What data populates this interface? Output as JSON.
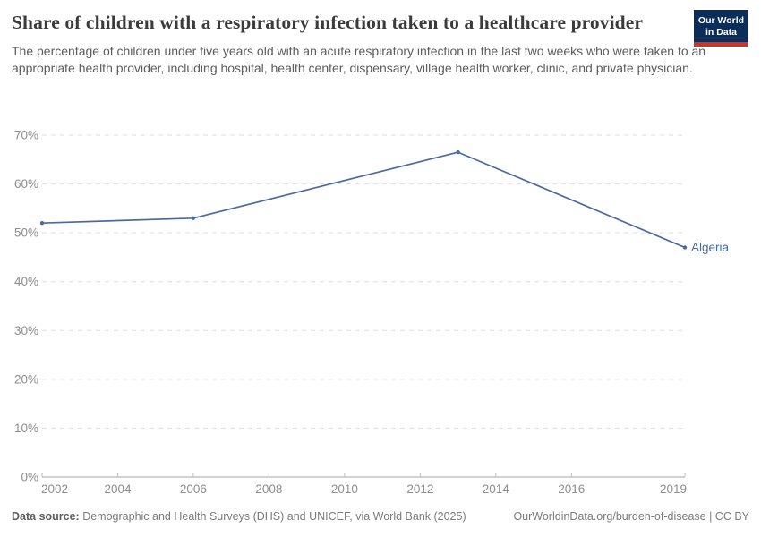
{
  "header": {
    "title": "Share of children with a respiratory infection taken to a healthcare provider",
    "subtitle": "The percentage of children under five years old with an acute respiratory infection in the last two weeks who were taken to an appropriate health provider, including hospital, health center, dispensary, village health worker, clinic, and private physician."
  },
  "logo": {
    "line1": "Our World",
    "line2": "in Data",
    "navy_color": "#0d2d59",
    "red_color": "#cf3328"
  },
  "chart_data": {
    "type": "line",
    "title": "Share of children with a respiratory infection taken to a healthcare provider",
    "entity_label": "Algeria",
    "series": [
      {
        "name": "Algeria",
        "color": "#4c6a9f",
        "points": [
          {
            "x": 2002,
            "y": 52
          },
          {
            "x": 2006,
            "y": 53
          },
          {
            "x": 2013,
            "y": 66.5
          },
          {
            "x": 2019,
            "y": 47
          }
        ]
      }
    ],
    "x_ticks": [
      2002,
      2004,
      2006,
      2008,
      2010,
      2012,
      2014,
      2016,
      2019
    ],
    "y_ticks": [
      0,
      10,
      20,
      30,
      40,
      50,
      60,
      70
    ],
    "xlim": [
      2002,
      2019
    ],
    "ylim": [
      0,
      70
    ],
    "y_tick_suffix": "%",
    "grid": "horizontal-dashed",
    "legend_position": "end-of-line-label"
  },
  "footer": {
    "source_label": "Data source:",
    "source_text": " Demographic and Health Surveys (DHS) and UNICEF, via World Bank (2025)",
    "link_text": "OurWorldinData.org/burden-of-disease | CC BY"
  }
}
